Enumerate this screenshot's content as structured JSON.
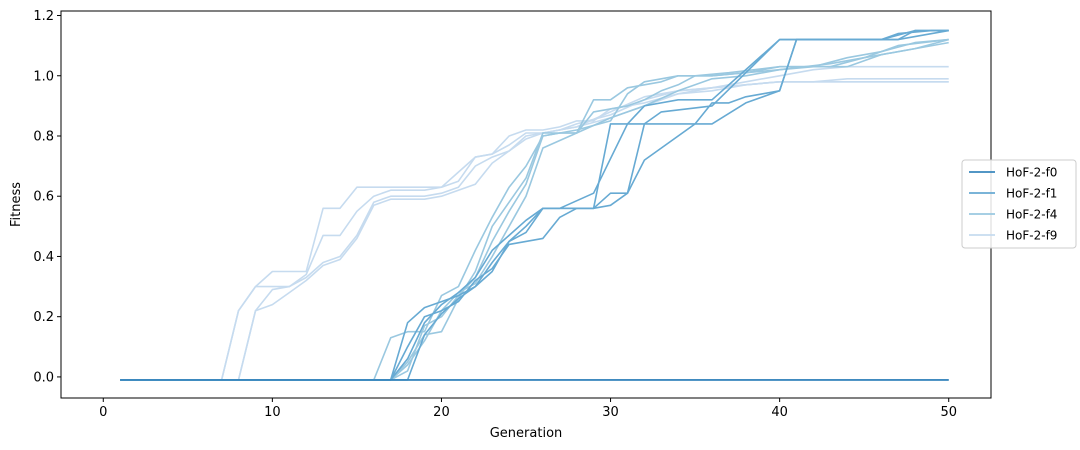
{
  "chart_data": {
    "type": "line",
    "title": "",
    "xlabel": "Generation",
    "ylabel": "Fitness",
    "xlim": [
      -2.5,
      52.5
    ],
    "ylim": [
      -0.07,
      1.215
    ],
    "xticks": [
      0,
      10,
      20,
      30,
      40,
      50
    ],
    "yticks": [
      0.0,
      0.2,
      0.4,
      0.6,
      0.8,
      1.0,
      1.2
    ],
    "grid": false,
    "legend_position": "center-right",
    "series": [
      {
        "name": "HoF-2-f0",
        "color": "#3a87bd",
        "runs": [
          {
            "x": [
              1,
              50
            ],
            "y": [
              -0.01,
              -0.01
            ]
          },
          {
            "x": [
              1,
              50
            ],
            "y": [
              -0.01,
              -0.01
            ]
          }
        ]
      },
      {
        "name": "HoF-2-f1",
        "color": "#67aad3",
        "runs": [
          {
            "x": [
              1,
              17,
              18,
              19,
              20,
              21,
              22,
              23,
              24,
              25,
              26,
              27,
              28,
              29,
              30,
              31,
              32,
              33,
              35,
              36,
              37,
              38,
              39,
              40,
              41,
              47,
              48,
              50
            ],
            "y": [
              -0.01,
              -0.01,
              0.18,
              0.23,
              0.25,
              0.27,
              0.3,
              0.35,
              0.45,
              0.5,
              0.56,
              0.56,
              0.56,
              0.56,
              0.61,
              0.61,
              0.84,
              0.84,
              0.84,
              0.91,
              0.91,
              0.93,
              0.94,
              0.95,
              1.12,
              1.12,
              1.15,
              1.15
            ]
          },
          {
            "x": [
              1,
              17,
              18,
              19,
              20,
              21,
              22,
              23,
              24,
              25,
              26,
              27,
              28,
              29,
              30,
              31,
              32,
              35,
              36,
              38,
              40,
              41,
              45,
              47,
              50
            ],
            "y": [
              -0.01,
              -0.01,
              0.1,
              0.2,
              0.22,
              0.25,
              0.32,
              0.36,
              0.44,
              0.45,
              0.46,
              0.53,
              0.56,
              0.56,
              0.57,
              0.61,
              0.72,
              0.84,
              0.84,
              0.91,
              0.95,
              1.12,
              1.12,
              1.12,
              1.15
            ]
          },
          {
            "x": [
              1,
              18,
              19,
              20,
              21,
              22,
              23,
              24,
              25,
              26,
              27,
              29,
              30,
              31,
              32,
              33,
              36,
              40,
              41,
              46,
              48,
              50
            ],
            "y": [
              -0.01,
              -0.01,
              0.14,
              0.21,
              0.26,
              0.3,
              0.38,
              0.45,
              0.48,
              0.56,
              0.56,
              0.56,
              0.84,
              0.84,
              0.84,
              0.88,
              0.9,
              1.12,
              1.12,
              1.12,
              1.15,
              1.15
            ]
          },
          {
            "x": [
              1,
              17,
              18,
              19,
              20,
              21,
              22,
              23,
              24,
              25,
              26,
              27,
              29,
              31,
              32,
              34,
              36,
              40,
              46,
              47,
              49,
              50
            ],
            "y": [
              -0.01,
              -0.01,
              0.06,
              0.18,
              0.24,
              0.28,
              0.33,
              0.42,
              0.47,
              0.52,
              0.56,
              0.56,
              0.61,
              0.84,
              0.9,
              0.92,
              0.92,
              1.12,
              1.12,
              1.14,
              1.15,
              1.15
            ]
          }
        ]
      },
      {
        "name": "HoF-2-f4",
        "color": "#9ac8e0",
        "runs": [
          {
            "x": [
              1,
              16,
              17,
              18,
              19,
              20,
              21,
              22,
              23,
              24,
              25,
              26,
              27,
              28,
              29,
              30,
              31,
              32,
              33,
              34,
              35,
              36,
              38,
              40,
              42,
              44,
              46,
              48,
              50
            ],
            "y": [
              -0.01,
              -0.01,
              0.13,
              0.15,
              0.15,
              0.27,
              0.3,
              0.42,
              0.53,
              0.63,
              0.7,
              0.8,
              0.81,
              0.81,
              0.88,
              0.89,
              0.9,
              0.92,
              0.95,
              0.97,
              1.0,
              1.0,
              1.01,
              1.02,
              1.03,
              1.06,
              1.08,
              1.11,
              1.12
            ]
          },
          {
            "x": [
              1,
              17,
              18,
              19,
              20,
              21,
              22,
              23,
              24,
              25,
              26,
              27,
              28,
              29,
              30,
              31,
              32,
              33,
              34,
              35,
              37,
              40,
              43,
              45,
              47,
              50
            ],
            "y": [
              -0.01,
              -0.01,
              0.05,
              0.14,
              0.15,
              0.26,
              0.35,
              0.5,
              0.58,
              0.66,
              0.81,
              0.81,
              0.81,
              0.92,
              0.92,
              0.96,
              0.97,
              0.98,
              1.0,
              1.0,
              1.01,
              1.03,
              1.03,
              1.06,
              1.1,
              1.12
            ]
          },
          {
            "x": [
              1,
              17,
              18,
              19,
              20,
              21,
              22,
              23,
              24,
              25,
              26,
              27,
              28,
              30,
              31,
              32,
              34,
              36,
              38,
              40,
              42,
              44,
              46,
              48,
              50
            ],
            "y": [
              -0.01,
              -0.01,
              0.02,
              0.17,
              0.2,
              0.27,
              0.33,
              0.45,
              0.55,
              0.64,
              0.8,
              0.81,
              0.82,
              0.85,
              0.94,
              0.98,
              1.0,
              1.0,
              1.01,
              1.03,
              1.03,
              1.03,
              1.07,
              1.09,
              1.12
            ]
          },
          {
            "x": [
              1,
              17,
              18,
              19,
              20,
              21,
              22,
              23,
              24,
              25,
              26,
              28,
              30,
              32,
              34,
              36,
              38,
              40,
              43,
              46,
              50
            ],
            "y": [
              -0.01,
              -0.01,
              0.04,
              0.12,
              0.22,
              0.28,
              0.31,
              0.4,
              0.5,
              0.6,
              0.76,
              0.81,
              0.86,
              0.9,
              0.95,
              0.99,
              1.0,
              1.02,
              1.04,
              1.07,
              1.11
            ]
          }
        ]
      },
      {
        "name": "HoF-2-f9",
        "color": "#c6dbef",
        "runs": [
          {
            "x": [
              1,
              7,
              8,
              9,
              10,
              12,
              13,
              14,
              15,
              17,
              19,
              20,
              21,
              22,
              23,
              24,
              25,
              26,
              27,
              28,
              29,
              30,
              32,
              34,
              36,
              38,
              40,
              42,
              44,
              46,
              48,
              50
            ],
            "y": [
              -0.01,
              -0.01,
              0.22,
              0.3,
              0.35,
              0.35,
              0.56,
              0.56,
              0.63,
              0.63,
              0.63,
              0.63,
              0.68,
              0.73,
              0.74,
              0.8,
              0.82,
              0.82,
              0.83,
              0.85,
              0.85,
              0.89,
              0.91,
              0.94,
              0.95,
              0.97,
              0.98,
              0.98,
              0.98,
              0.98,
              0.98,
              0.98
            ]
          },
          {
            "x": [
              1,
              7,
              8,
              9,
              10,
              11,
              12,
              13,
              14,
              15,
              16,
              17,
              18,
              19,
              20,
              21,
              22,
              23,
              24,
              25,
              26,
              27,
              28,
              30,
              32,
              34,
              36,
              38,
              40,
              42,
              44,
              46,
              48,
              50
            ],
            "y": [
              -0.01,
              -0.01,
              0.22,
              0.3,
              0.3,
              0.3,
              0.34,
              0.47,
              0.47,
              0.55,
              0.6,
              0.62,
              0.62,
              0.62,
              0.63,
              0.65,
              0.73,
              0.74,
              0.77,
              0.81,
              0.81,
              0.82,
              0.84,
              0.87,
              0.92,
              0.95,
              0.96,
              0.97,
              0.98,
              0.98,
              0.98,
              0.98,
              0.98,
              0.98
            ]
          },
          {
            "x": [
              1,
              8,
              9,
              10,
              11,
              12,
              13,
              14,
              15,
              16,
              17,
              19,
              20,
              21,
              22,
              23,
              24,
              25,
              26,
              28,
              30,
              32,
              34,
              36,
              38,
              40,
              42,
              44,
              46,
              48,
              50
            ],
            "y": [
              -0.01,
              -0.01,
              0.22,
              0.29,
              0.3,
              0.33,
              0.38,
              0.4,
              0.47,
              0.58,
              0.6,
              0.6,
              0.61,
              0.63,
              0.7,
              0.73,
              0.75,
              0.8,
              0.81,
              0.83,
              0.88,
              0.93,
              0.95,
              0.96,
              0.97,
              0.98,
              0.98,
              0.99,
              0.99,
              0.99,
              0.99
            ]
          },
          {
            "x": [
              1,
              8,
              9,
              10,
              11,
              12,
              13,
              14,
              15,
              16,
              17,
              18,
              19,
              20,
              21,
              22,
              23,
              24,
              25,
              26,
              28,
              30,
              32,
              34,
              36,
              38,
              40,
              42,
              44,
              46,
              48,
              50
            ],
            "y": [
              -0.01,
              -0.01,
              0.22,
              0.24,
              0.28,
              0.32,
              0.37,
              0.39,
              0.46,
              0.57,
              0.59,
              0.59,
              0.59,
              0.6,
              0.62,
              0.64,
              0.71,
              0.75,
              0.79,
              0.81,
              0.83,
              0.86,
              0.9,
              0.94,
              0.96,
              0.98,
              1.0,
              1.02,
              1.03,
              1.03,
              1.03,
              1.03
            ]
          }
        ]
      }
    ]
  }
}
